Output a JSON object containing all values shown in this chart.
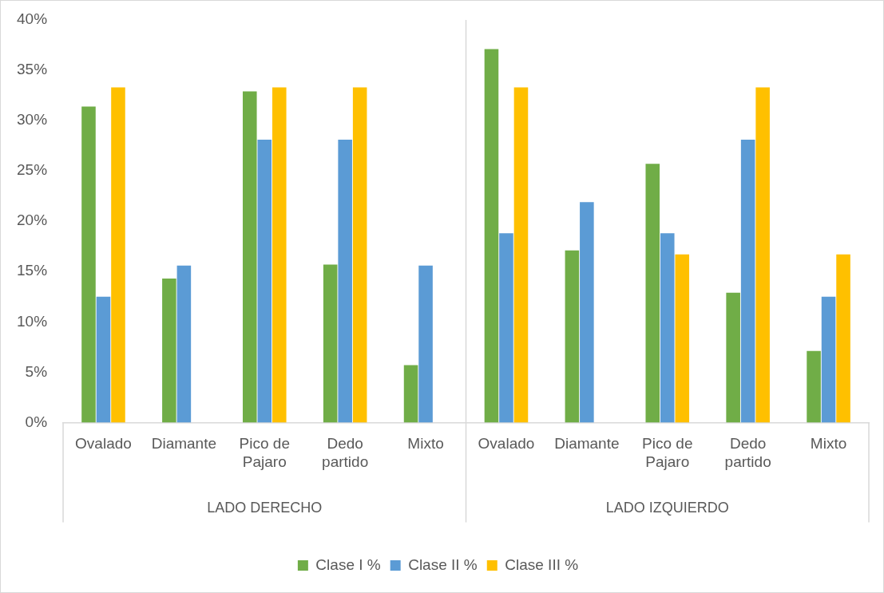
{
  "chart_data": {
    "type": "bar",
    "categories": [
      "Ovalado",
      "Diamante",
      "Pico de Pajaro",
      "Dedo partido",
      "Mixto",
      "Ovalado",
      "Diamante",
      "Pico de Pajaro",
      "Dedo partido",
      "Mixto"
    ],
    "annotations": [
      "LADO DERECHO",
      "LADO IZQUIERDO"
    ],
    "series": [
      {
        "name": "Clase I %",
        "color": "#70ad47",
        "values": [
          31.4,
          14.3,
          32.9,
          15.7,
          5.7,
          37.1,
          17.1,
          25.7,
          12.9,
          7.1
        ]
      },
      {
        "name": "Clase II %",
        "color": "#5b9bd5",
        "values": [
          12.5,
          15.6,
          28.1,
          28.1,
          15.6,
          18.8,
          21.9,
          18.8,
          28.1,
          12.5
        ]
      },
      {
        "name": "Clase III %",
        "color": "#ffc000",
        "values": [
          33.3,
          0,
          33.3,
          33.3,
          0,
          33.3,
          0,
          16.7,
          33.3,
          16.7
        ]
      }
    ],
    "ylim": [
      0,
      40
    ],
    "yticks": [
      {
        "value": 0,
        "label": "0%"
      },
      {
        "value": 5,
        "label": "5%"
      },
      {
        "value": 10,
        "label": "10%"
      },
      {
        "value": 15,
        "label": "15%"
      },
      {
        "value": 20,
        "label": "20%"
      },
      {
        "value": 25,
        "label": "25%"
      },
      {
        "value": 30,
        "label": "30%"
      },
      {
        "value": 35,
        "label": "35%"
      },
      {
        "value": 40,
        "label": "40%"
      }
    ],
    "grid": false,
    "legend": "bottom"
  }
}
